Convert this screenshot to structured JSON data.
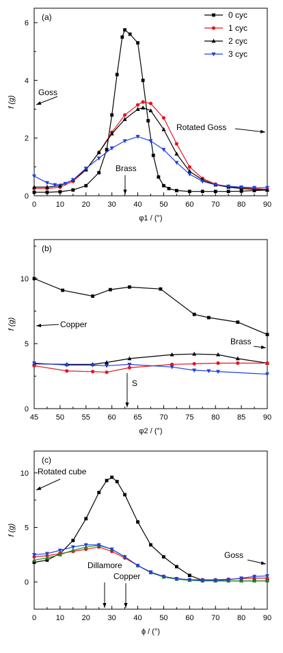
{
  "chart_data": [
    {
      "type": "line",
      "panel_label": "(a)",
      "xlabel": "φ1 / (°)",
      "ylabel": "f (g)",
      "xlim": [
        0,
        90
      ],
      "ylim": [
        0,
        6.5
      ],
      "xticks": [
        0,
        10,
        20,
        30,
        40,
        50,
        60,
        70,
        80,
        90
      ],
      "yticks": [
        0,
        2,
        4,
        6
      ],
      "legend_position": "top-right",
      "series": [
        {
          "name": "0 cyc",
          "color": "#000000",
          "marker": "square",
          "x": [
            0,
            5,
            10,
            15,
            20,
            25,
            28,
            30,
            32,
            34,
            35,
            37,
            40,
            42,
            44,
            46,
            48,
            50,
            52,
            55,
            60,
            65,
            70,
            75,
            80,
            85,
            90
          ],
          "y": [
            0.12,
            0.12,
            0.14,
            0.2,
            0.35,
            0.8,
            1.6,
            2.8,
            4.2,
            5.5,
            5.75,
            5.6,
            5.3,
            4.0,
            2.6,
            1.4,
            0.65,
            0.35,
            0.25,
            0.18,
            0.15,
            0.15,
            0.15,
            0.15,
            0.16,
            0.18,
            0.2
          ]
        },
        {
          "name": "1 cyc",
          "color": "#e8141c",
          "marker": "circle",
          "x": [
            0,
            5,
            10,
            15,
            20,
            25,
            30,
            35,
            40,
            42,
            45,
            50,
            55,
            60,
            65,
            70,
            75,
            80,
            85,
            90
          ],
          "y": [
            0.25,
            0.25,
            0.3,
            0.5,
            0.9,
            1.5,
            2.2,
            2.8,
            3.15,
            3.25,
            3.2,
            2.7,
            1.8,
            1.0,
            0.6,
            0.4,
            0.32,
            0.28,
            0.25,
            0.22
          ]
        },
        {
          "name": "2 cyc",
          "color": "#000000",
          "marker": "triangle-up",
          "x": [
            0,
            5,
            10,
            15,
            20,
            25,
            30,
            35,
            40,
            42,
            45,
            50,
            55,
            60,
            65,
            70,
            75,
            80,
            85,
            90
          ],
          "y": [
            0.3,
            0.3,
            0.35,
            0.55,
            0.9,
            1.5,
            2.15,
            2.65,
            3.0,
            3.05,
            2.95,
            2.3,
            1.45,
            0.85,
            0.55,
            0.38,
            0.3,
            0.25,
            0.22,
            0.2
          ]
        },
        {
          "name": "3 cyc",
          "color": "#1d3fe0",
          "marker": "triangle-down",
          "x": [
            0,
            5,
            8,
            12,
            15,
            20,
            25,
            30,
            35,
            40,
            45,
            50,
            55,
            60,
            65,
            70,
            75,
            80,
            85,
            90
          ],
          "y": [
            0.68,
            0.45,
            0.38,
            0.42,
            0.55,
            0.95,
            1.3,
            1.65,
            1.9,
            2.05,
            1.9,
            1.6,
            1.15,
            0.75,
            0.5,
            0.38,
            0.33,
            0.3,
            0.28,
            0.28
          ]
        }
      ],
      "annotations": [
        {
          "text": "Goss",
          "points_to": "y-axis"
        },
        {
          "text": "Rotated Goss",
          "points_to": "right axis"
        },
        {
          "text": "Brass",
          "points_to": "x = 35"
        }
      ]
    },
    {
      "type": "line",
      "panel_label": "(b)",
      "xlabel": "φ2 / (°)",
      "ylabel": "f (g)",
      "xlim": [
        45,
        90
      ],
      "ylim": [
        0,
        13
      ],
      "xticks": [
        45,
        50,
        55,
        60,
        65,
        70,
        75,
        80,
        85,
        90
      ],
      "yticks": [
        0,
        5,
        10
      ],
      "series": [
        {
          "color": "#000000",
          "marker": "square",
          "x": [
            45,
            50.5,
            56.3,
            59.7,
            63.4,
            69.4,
            75.9,
            78.7,
            84.3,
            90
          ],
          "y": [
            10.0,
            9.1,
            8.65,
            9.15,
            9.35,
            9.2,
            7.25,
            7.0,
            6.65,
            5.7
          ]
        },
        {
          "color": "#000000",
          "marker": "triangle-up",
          "x": [
            45,
            51.3,
            56.3,
            59,
            63.4,
            71.6,
            75.9,
            80.5,
            84.3,
            90
          ],
          "y": [
            3.45,
            3.4,
            3.4,
            3.55,
            3.85,
            4.15,
            4.2,
            4.15,
            3.85,
            3.5
          ]
        },
        {
          "color": "#e8141c",
          "marker": "circle",
          "x": [
            45,
            51.3,
            56.3,
            59,
            63.4,
            71.6,
            75.9,
            80.5,
            84.3,
            90
          ],
          "y": [
            3.3,
            2.9,
            2.85,
            2.8,
            3.15,
            3.4,
            3.45,
            3.5,
            3.5,
            3.5
          ]
        },
        {
          "color": "#1d3fe0",
          "marker": "triangle-down",
          "x": [
            45,
            51.3,
            56.3,
            59,
            63.4,
            71.6,
            75.9,
            78.7,
            80.5,
            90
          ],
          "y": [
            3.5,
            3.35,
            3.35,
            3.3,
            3.4,
            3.2,
            2.95,
            2.9,
            2.85,
            2.65
          ]
        }
      ],
      "annotations": [
        {
          "text": "Copper",
          "points_to": "y-axis"
        },
        {
          "text": "Brass",
          "points_to": "right axis"
        },
        {
          "text": "S",
          "points_to": "x = 63.4"
        }
      ]
    },
    {
      "type": "line",
      "panel_label": "(c)",
      "xlabel": "ϕ / (°)",
      "ylabel": "f (g)",
      "xlim": [
        0,
        90
      ],
      "ylim": [
        -2.5,
        12
      ],
      "xticks": [
        0,
        10,
        20,
        30,
        40,
        50,
        60,
        70,
        80,
        90
      ],
      "yticks": [
        0,
        5,
        10
      ],
      "series": [
        {
          "color": "#000000",
          "marker": "square",
          "x": [
            0,
            5,
            10,
            15,
            20,
            25,
            28,
            30,
            32,
            35,
            40,
            45,
            50,
            55,
            60,
            65,
            70,
            75,
            80,
            85,
            90
          ],
          "y": [
            1.8,
            2.0,
            2.6,
            3.8,
            5.8,
            8.2,
            9.3,
            9.6,
            9.2,
            8.0,
            5.5,
            3.4,
            2.3,
            1.4,
            0.6,
            0.15,
            0.1,
            0.1,
            0.1,
            0.1,
            0.1
          ]
        },
        {
          "color": "#e8141c",
          "marker": "circle",
          "x": [
            0,
            5,
            10,
            15,
            20,
            25,
            30,
            35,
            40,
            45,
            50,
            55,
            60,
            65,
            70,
            75,
            80,
            85,
            90
          ],
          "y": [
            2.3,
            2.4,
            2.6,
            2.8,
            3.0,
            3.2,
            2.8,
            2.2,
            1.5,
            0.9,
            0.5,
            0.3,
            0.2,
            0.2,
            0.2,
            0.25,
            0.3,
            0.35,
            0.35
          ]
        },
        {
          "color": "#1f8a22",
          "marker": "triangle-up",
          "x": [
            0,
            5,
            10,
            15,
            20,
            25,
            30,
            35,
            40,
            45,
            50,
            55,
            60,
            65,
            70,
            75,
            80,
            85,
            90
          ],
          "y": [
            2.0,
            2.2,
            2.5,
            2.9,
            3.2,
            3.35,
            3.0,
            2.3,
            1.5,
            0.85,
            0.45,
            0.25,
            0.15,
            0.1,
            0.1,
            0.1,
            0.1,
            0.1,
            0.1
          ]
        },
        {
          "color": "#1d3fe0",
          "marker": "triangle-down",
          "x": [
            0,
            5,
            10,
            15,
            20,
            25,
            30,
            35,
            40,
            45,
            50,
            55,
            60,
            65,
            70,
            75,
            80,
            85,
            90
          ],
          "y": [
            2.5,
            2.6,
            2.9,
            3.2,
            3.4,
            3.4,
            3.0,
            2.3,
            1.5,
            0.9,
            0.5,
            0.3,
            0.2,
            0.15,
            0.15,
            0.2,
            0.35,
            0.5,
            0.55
          ]
        }
      ],
      "annotations": [
        {
          "text": "Rotated cube",
          "points_to": "y-axis"
        },
        {
          "text": "Goss",
          "points_to": "right axis"
        },
        {
          "text": "Dillamore",
          "points_to": "x = 27"
        },
        {
          "text": "Copper",
          "points_to": "x = 35"
        }
      ]
    }
  ]
}
